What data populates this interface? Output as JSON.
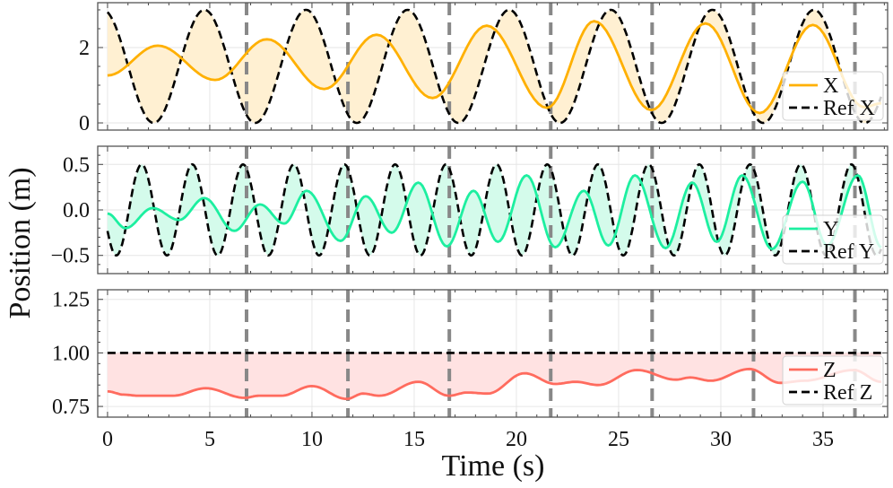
{
  "chart": {
    "xlabel": "Time (s)",
    "ylabel": "Position (m)",
    "xlim": [
      -0.48,
      38.16
    ],
    "xticks": [
      0,
      5,
      10,
      15,
      20,
      25,
      30,
      35
    ],
    "xtick_labels": [
      "0",
      "5",
      "10",
      "15",
      "20",
      "25",
      "30",
      "35"
    ],
    "grid": true,
    "event_lines": {
      "color": "#888888",
      "style": "dashed",
      "x": [
        6.8,
        11.76,
        16.72,
        21.68,
        26.64,
        31.6,
        36.56
      ]
    }
  },
  "chart_data": [
    {
      "type": "line",
      "ylim": [
        -0.19,
        3.19
      ],
      "yticks": [
        0,
        2
      ],
      "ytick_labels": [
        "0",
        "2"
      ],
      "legend_position": "right",
      "fill_color": "#FFF0D2",
      "series": [
        {
          "name": "X",
          "color": "#FFB000",
          "style": "solid",
          "extrema": [
            [
              0,
              1.26
            ],
            [
              2.46,
              2.05
            ],
            [
              5.26,
              1.14
            ],
            [
              7.8,
              2.22
            ],
            [
              10.6,
              0.9
            ],
            [
              13.16,
              2.34
            ],
            [
              15.9,
              0.66
            ],
            [
              18.55,
              2.58
            ],
            [
              21.5,
              0.4
            ],
            [
              23.8,
              2.7
            ],
            [
              26.6,
              0.34
            ],
            [
              29.25,
              2.64
            ],
            [
              31.9,
              0.26
            ],
            [
              34.5,
              2.6
            ],
            [
              37.0,
              0.42
            ],
            [
              37.85,
              0.52
            ]
          ]
        },
        {
          "name": "Ref X",
          "color": "#000000",
          "style": "dashed",
          "sinusoid": {
            "offset": 1.5,
            "amplitude": 1.5,
            "period": 4.97,
            "peak_time": 4.74
          }
        }
      ]
    },
    {
      "type": "line",
      "ylim": [
        -0.7,
        0.7
      ],
      "yticks": [
        -0.5,
        0,
        0.5
      ],
      "ytick_labels": [
        "−0.5",
        "0.0",
        "0.5"
      ],
      "legend_position": "right",
      "fill_color": "#D4FBEB",
      "series": [
        {
          "name": "Y",
          "color": "#1DEFA0",
          "style": "solid",
          "extrema": [
            [
              0,
              -0.04
            ],
            [
              0.88,
              -0.2
            ],
            [
              2.2,
              0.02
            ],
            [
              3.5,
              -0.11
            ],
            [
              4.74,
              0.13
            ],
            [
              6.2,
              -0.23
            ],
            [
              7.46,
              0.06
            ],
            [
              8.64,
              -0.15
            ],
            [
              9.74,
              0.21
            ],
            [
              11.4,
              -0.34
            ],
            [
              12.63,
              0.15
            ],
            [
              13.9,
              -0.25
            ],
            [
              15.2,
              0.3
            ],
            [
              16.6,
              -0.4
            ],
            [
              17.9,
              0.21
            ],
            [
              19.1,
              -0.35
            ],
            [
              20.5,
              0.38
            ],
            [
              21.9,
              -0.41
            ],
            [
              23.3,
              0.21
            ],
            [
              24.5,
              -0.39
            ],
            [
              25.8,
              0.38
            ],
            [
              27.3,
              -0.42
            ],
            [
              28.6,
              0.3
            ],
            [
              29.8,
              -0.35
            ],
            [
              31.05,
              0.38
            ],
            [
              32.5,
              -0.43
            ],
            [
              34.0,
              0.31
            ],
            [
              35.2,
              -0.39
            ],
            [
              36.7,
              0.38
            ],
            [
              37.85,
              -0.41
            ]
          ]
        },
        {
          "name": "Ref Y",
          "color": "#000000",
          "style": "dashed",
          "sinusoid": {
            "offset": 0,
            "amplitude": 0.5,
            "period": 2.48,
            "peak_time": 1.67
          }
        }
      ]
    },
    {
      "type": "line",
      "ylim": [
        0.7,
        1.295
      ],
      "yticks": [
        0.75,
        1.0,
        1.25
      ],
      "ytick_labels": [
        "0.75",
        "1.00",
        "1.25"
      ],
      "legend_position": "right",
      "fill_color": "#FFE2E2",
      "series": [
        {
          "name": "Z",
          "color": "#FF6B5E",
          "style": "solid",
          "extrema": [
            [
              0,
              0.82
            ],
            [
              0.8,
              0.805
            ],
            [
              1.5,
              0.8
            ],
            [
              3.2,
              0.8
            ],
            [
              4.8,
              0.835
            ],
            [
              6.7,
              0.79
            ],
            [
              7.4,
              0.8
            ],
            [
              8.5,
              0.8
            ],
            [
              10.0,
              0.845
            ],
            [
              11.7,
              0.785
            ],
            [
              12.5,
              0.81
            ],
            [
              13.3,
              0.8
            ],
            [
              15.2,
              0.865
            ],
            [
              16.7,
              0.8
            ],
            [
              17.6,
              0.815
            ],
            [
              18.6,
              0.81
            ],
            [
              20.4,
              0.905
            ],
            [
              21.9,
              0.855
            ],
            [
              22.9,
              0.865
            ],
            [
              24.0,
              0.85
            ],
            [
              25.9,
              0.92
            ],
            [
              27.8,
              0.875
            ],
            [
              28.5,
              0.885
            ],
            [
              29.5,
              0.87
            ],
            [
              31.4,
              0.925
            ],
            [
              32.9,
              0.86
            ],
            [
              34.1,
              0.87
            ],
            [
              36.5,
              0.92
            ],
            [
              37.85,
              0.865
            ]
          ]
        },
        {
          "name": "Ref Z",
          "color": "#000000",
          "style": "dashed",
          "sinusoid": {
            "offset": 1.0,
            "amplitude": 0,
            "period": 5,
            "peak_time": 0
          }
        }
      ]
    }
  ]
}
